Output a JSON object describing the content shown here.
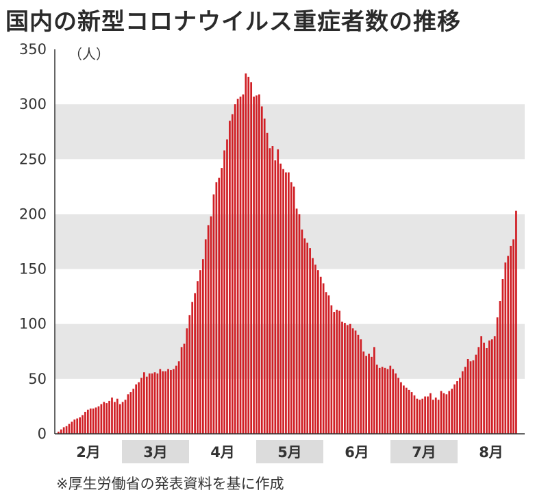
{
  "title": "国内の新型コロナウイルス重症者数の推移",
  "source": "※厚生労働省の発表資料を基に作成",
  "chart_data": {
    "type": "bar",
    "title": "国内の新型コロナウイルス重症者数の推移",
    "ylabel": "（人）",
    "xlabel": "",
    "ylim": [
      0,
      350
    ],
    "yticks": [
      0,
      50,
      100,
      150,
      200,
      250,
      300,
      350
    ],
    "grid": "alternating horizontal bands",
    "bar_color": "#d01f25",
    "band_color": "#e6e6e6",
    "months": [
      "2月",
      "3月",
      "4月",
      "5月",
      "6月",
      "7月",
      "8月"
    ],
    "values": [
      2,
      4,
      6,
      7,
      9,
      11,
      13,
      14,
      15,
      17,
      20,
      22,
      23,
      23,
      24,
      25,
      27,
      29,
      28,
      30,
      33,
      29,
      32,
      27,
      29,
      31,
      36,
      38,
      41,
      45,
      47,
      51,
      56,
      52,
      55,
      55,
      56,
      55,
      59,
      57,
      57,
      59,
      58,
      59,
      62,
      66,
      79,
      82,
      96,
      108,
      120,
      128,
      139,
      149,
      159,
      177,
      190,
      198,
      218,
      229,
      233,
      242,
      258,
      268,
      285,
      291,
      300,
      305,
      307,
      309,
      328,
      325,
      320,
      307,
      308,
      309,
      298,
      287,
      274,
      260,
      262,
      249,
      259,
      246,
      241,
      238,
      238,
      229,
      225,
      205,
      200,
      186,
      178,
      174,
      169,
      160,
      154,
      149,
      143,
      137,
      129,
      126,
      117,
      111,
      113,
      112,
      102,
      101,
      99,
      100,
      96,
      94,
      90,
      86,
      75,
      71,
      73,
      70,
      79,
      63,
      60,
      61,
      60,
      59,
      62,
      59,
      55,
      51,
      47,
      44,
      42,
      40,
      38,
      35,
      32,
      31,
      32,
      34,
      34,
      37,
      31,
      33,
      31,
      39,
      37,
      36,
      39,
      41,
      45,
      48,
      51,
      57,
      61,
      68,
      66,
      67,
      72,
      79,
      89,
      83,
      78,
      85,
      86,
      89,
      106,
      121,
      141,
      156,
      162,
      171,
      177,
      203
    ]
  }
}
